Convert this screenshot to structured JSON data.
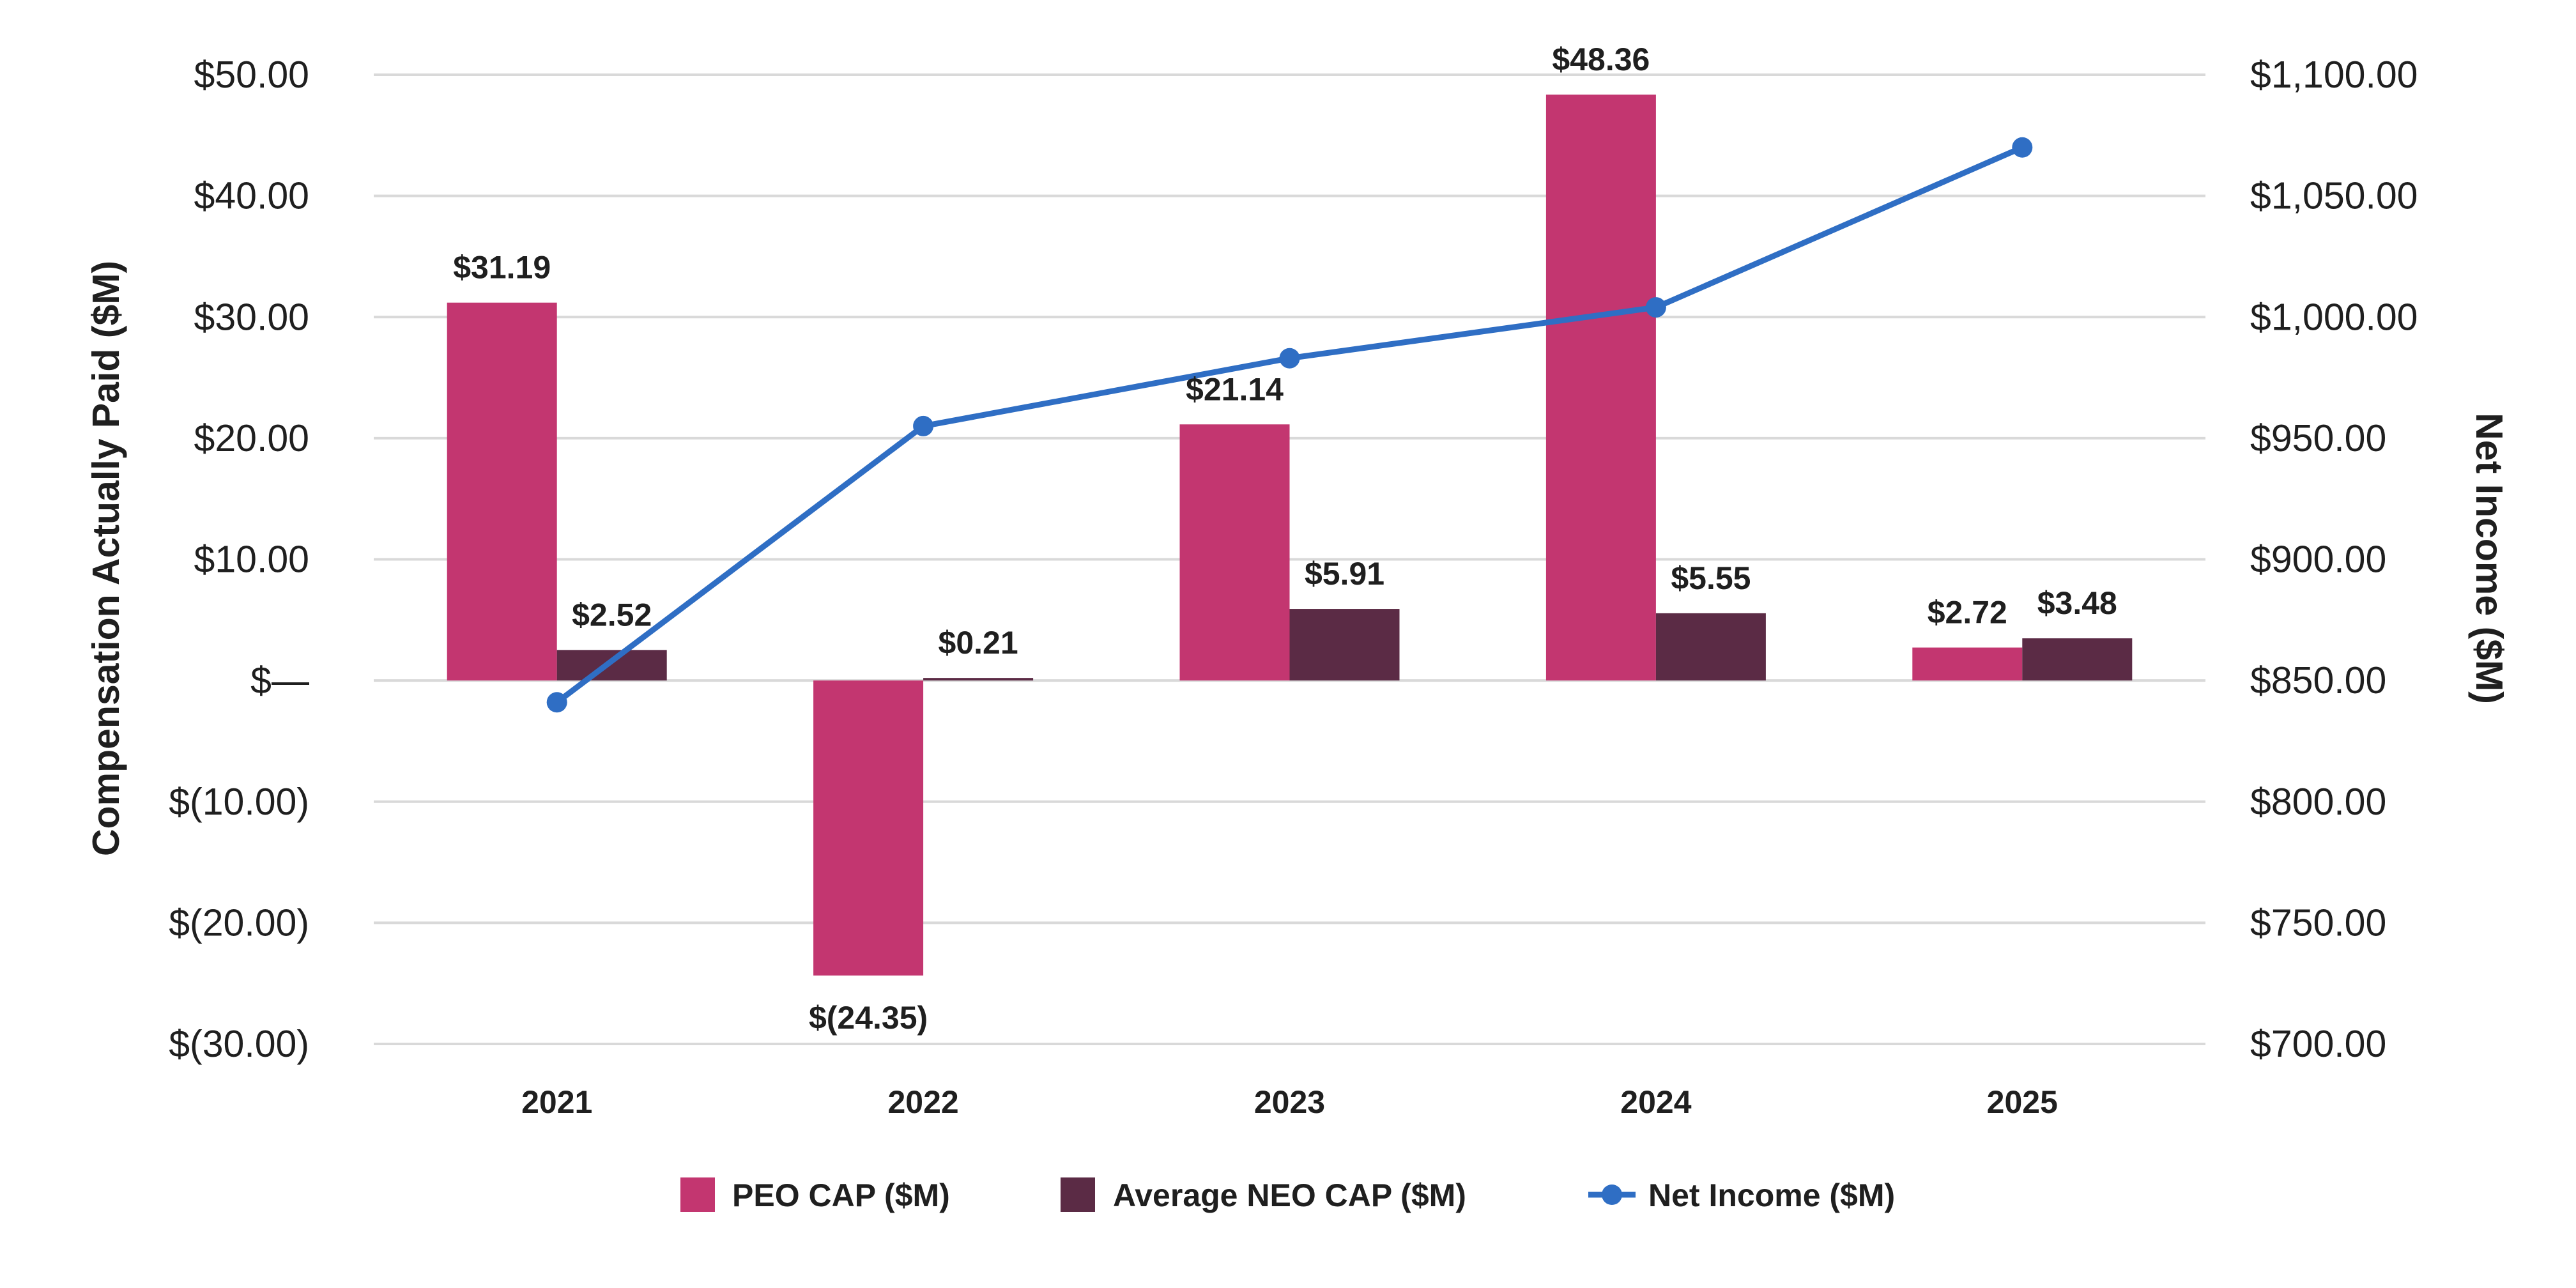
{
  "chart_data": {
    "type": "bar",
    "categories": [
      "2021",
      "2022",
      "2023",
      "2024",
      "2025"
    ],
    "series": [
      {
        "name": "PEO CAP ($M)",
        "kind": "bar",
        "axis": "left",
        "color": "#c33670",
        "values": [
          31.19,
          -24.35,
          21.14,
          48.36,
          2.72
        ],
        "labels": [
          "$31.19",
          "$(24.35)",
          "$21.14",
          "$48.36",
          "$2.72"
        ]
      },
      {
        "name": "Average NEO CAP ($M)",
        "kind": "bar",
        "axis": "left",
        "color": "#5b2b45",
        "values": [
          2.52,
          0.21,
          5.91,
          5.55,
          3.48
        ],
        "labels": [
          "$2.52",
          "$0.21",
          "$5.91",
          "$5.55",
          "$3.48"
        ]
      },
      {
        "name": "Net Income ($M)",
        "kind": "line",
        "axis": "right",
        "color": "#2f6ec4",
        "values": [
          841,
          955,
          983,
          1004,
          1070
        ]
      }
    ],
    "ylabel": "Compensation Actually Paid ($M)",
    "y2label": "Net Income ($M)",
    "ylim": [
      -30,
      50
    ],
    "y2lim": [
      700,
      1100
    ],
    "yticks": [
      {
        "value": 50,
        "label": "$50.00"
      },
      {
        "value": 40,
        "label": "$40.00"
      },
      {
        "value": 30,
        "label": "$30.00"
      },
      {
        "value": 20,
        "label": "$20.00"
      },
      {
        "value": 10,
        "label": "$10.00"
      },
      {
        "value": 0,
        "label": "$—"
      },
      {
        "value": -10,
        "label": "$(10.00)"
      },
      {
        "value": -20,
        "label": "$(20.00)"
      },
      {
        "value": -30,
        "label": "$(30.00)"
      }
    ],
    "y2ticks": [
      {
        "value": 1100,
        "label": "$1,100.00"
      },
      {
        "value": 1050,
        "label": "$1,050.00"
      },
      {
        "value": 1000,
        "label": "$1,000.00"
      },
      {
        "value": 950,
        "label": "$950.00"
      },
      {
        "value": 900,
        "label": "$900.00"
      },
      {
        "value": 850,
        "label": "$850.00"
      },
      {
        "value": 800,
        "label": "$800.00"
      },
      {
        "value": 750,
        "label": "$750.00"
      },
      {
        "value": 700,
        "label": "$700.00"
      }
    ],
    "grid": true,
    "legend": "bottom-center"
  }
}
